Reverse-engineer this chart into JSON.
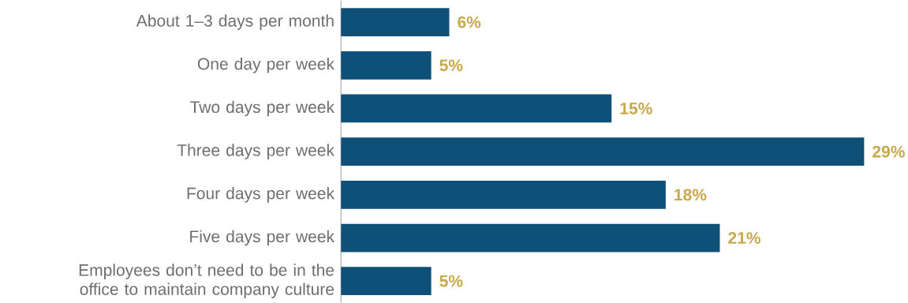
{
  "chart_data": {
    "type": "bar",
    "orientation": "horizontal",
    "categories": [
      "About 1–3 days per month",
      "One day per week",
      "Two days per week",
      "Three days per week",
      "Four days per week",
      "Five days per week",
      "Employees don’t need to be in the office to maintain company culture"
    ],
    "values": [
      6,
      5,
      15,
      29,
      18,
      21,
      5
    ],
    "value_labels": [
      "6%",
      "5%",
      "15%",
      "29%",
      "18%",
      "21%",
      "5%"
    ],
    "color": "#0f5079"
  }
}
